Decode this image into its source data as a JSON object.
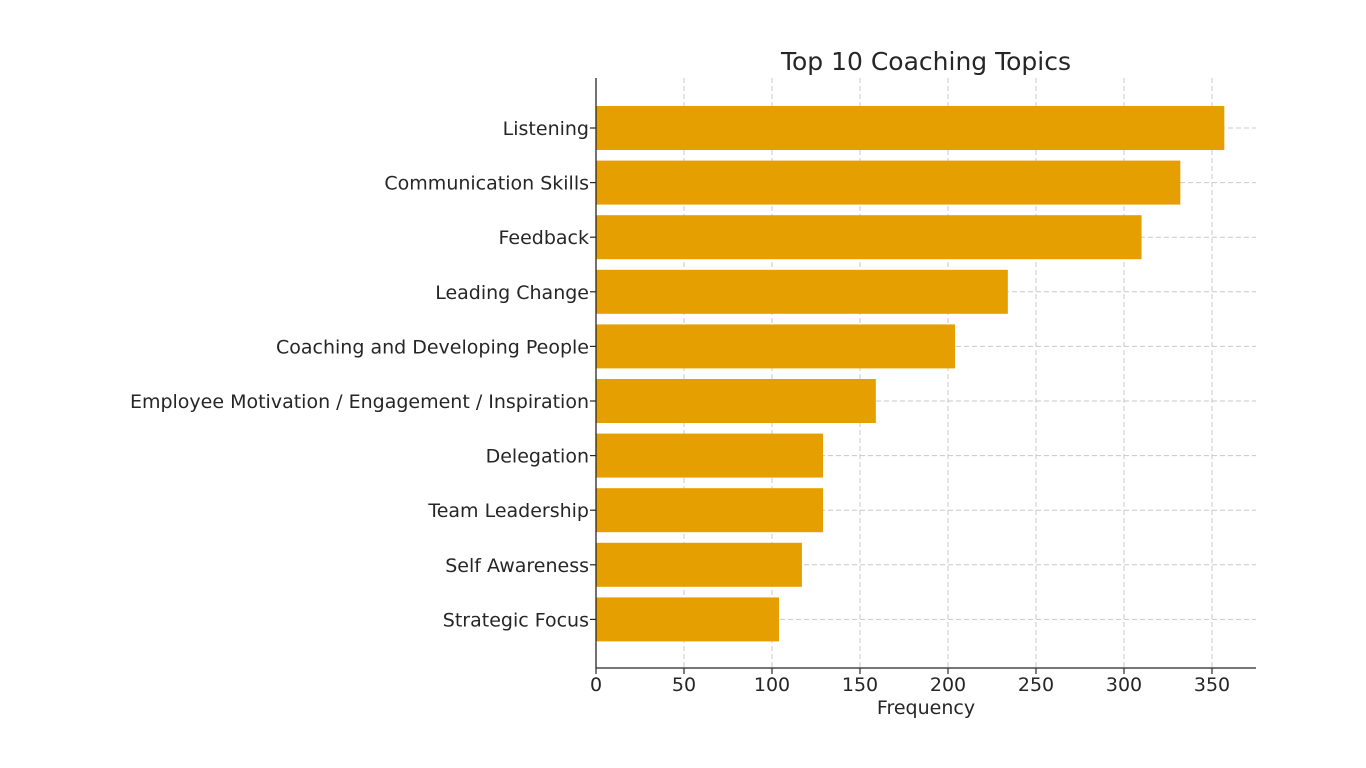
{
  "chart_data": {
    "type": "bar",
    "orientation": "horizontal",
    "title": "Top 10 Coaching Topics",
    "xlabel": "Frequency",
    "ylabel": "",
    "categories": [
      "Listening",
      "Communication Skills",
      "Feedback",
      "Leading Change",
      "Coaching and Developing People",
      "Employee Motivation / Engagement / Inspiration",
      "Delegation",
      "Team Leadership",
      "Self Awareness",
      "Strategic Focus"
    ],
    "values": [
      357,
      332,
      310,
      234,
      204,
      159,
      129,
      129,
      117,
      104
    ],
    "xlim": [
      0,
      375
    ],
    "xticks": [
      "0",
      "50",
      "100",
      "150",
      "200",
      "250",
      "300",
      "350"
    ],
    "bar_color": "#e69f00",
    "grid": true,
    "legend": "none"
  }
}
